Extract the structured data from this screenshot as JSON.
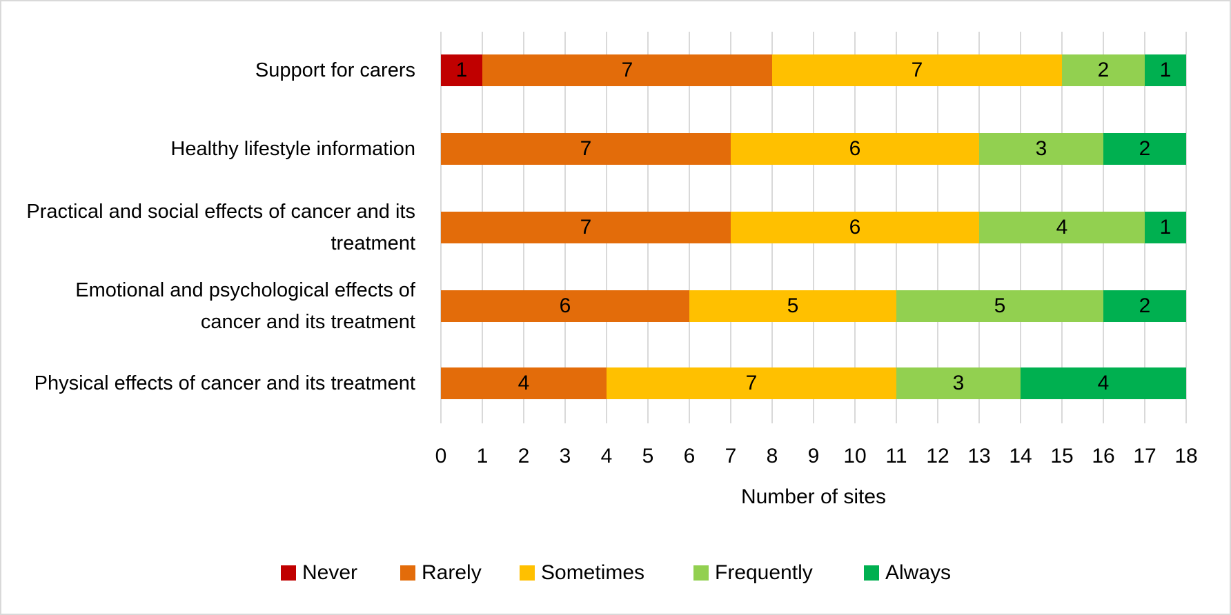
{
  "chart_data": {
    "type": "stacked-bar-horizontal",
    "categories": [
      "Support for carers",
      "Healthy lifestyle information",
      "Practical and social effects of cancer and its treatment",
      "Emotional and psychological effects of cancer and its treatment",
      "Physical effects of cancer and its treatment"
    ],
    "series": [
      {
        "name": "Never",
        "color": "#c00000",
        "values": [
          1,
          null,
          null,
          null,
          null
        ]
      },
      {
        "name": "Rarely",
        "color": "#e36c0a",
        "values": [
          7,
          7,
          7,
          6,
          4
        ]
      },
      {
        "name": "Sometimes",
        "color": "#ffc000",
        "values": [
          7,
          6,
          6,
          5,
          7
        ]
      },
      {
        "name": "Frequently",
        "color": "#92d050",
        "values": [
          2,
          3,
          4,
          5,
          3
        ]
      },
      {
        "name": "Always",
        "color": "#00b050",
        "values": [
          1,
          2,
          1,
          2,
          4
        ]
      }
    ],
    "x_label": "Number of sites",
    "xlim": [
      0,
      18
    ],
    "xticks": [
      0,
      1,
      2,
      3,
      4,
      5,
      6,
      7,
      8,
      9,
      10,
      11,
      12,
      13,
      14,
      15,
      16,
      17,
      18
    ],
    "grid": true,
    "legend": "bottom"
  }
}
